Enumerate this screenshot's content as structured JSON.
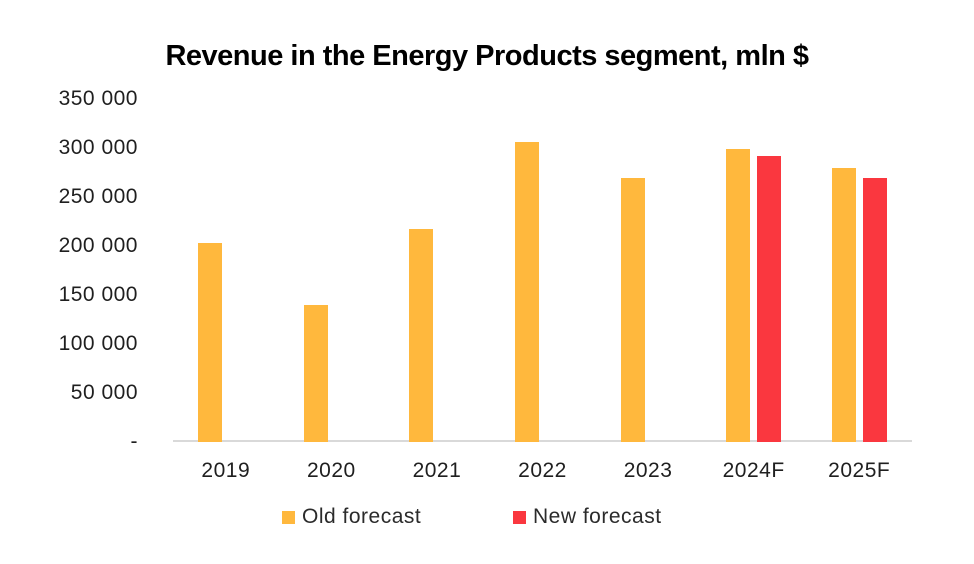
{
  "title": "Revenue in the Energy Products segment, mln $",
  "colors": {
    "old_forecast": "#FFB83D",
    "new_forecast": "#FA373F",
    "axis_line": "#D9D9D9",
    "title_text": "#000000",
    "label_text": "#1F1F1F"
  },
  "legend": {
    "items": [
      {
        "label": "Old forecast",
        "color": "#FFB83D"
      },
      {
        "label": "New forecast",
        "color": "#FA373F"
      }
    ]
  },
  "chart_data": {
    "type": "bar",
    "title": "Revenue in the Energy Products segment, mln $",
    "categories": [
      "2019",
      "2020",
      "2021",
      "2022",
      "2023",
      "2024F",
      "2025F"
    ],
    "series": [
      {
        "name": "Old forecast",
        "color": "#FFB83D",
        "values": [
          203000,
          140000,
          217000,
          306000,
          269000,
          299000,
          280000
        ]
      },
      {
        "name": "New forecast",
        "color": "#FA373F",
        "values": [
          null,
          null,
          null,
          null,
          null,
          292000,
          269000
        ]
      }
    ],
    "xlabel": "",
    "ylabel": "",
    "ylim": [
      0,
      350000
    ],
    "ytick_step": 50000,
    "yticks": [
      {
        "value": 350000,
        "label": "350 000"
      },
      {
        "value": 300000,
        "label": "300 000"
      },
      {
        "value": 250000,
        "label": "250 000"
      },
      {
        "value": 200000,
        "label": "200 000"
      },
      {
        "value": 150000,
        "label": "150 000"
      },
      {
        "value": 100000,
        "label": "100 000"
      },
      {
        "value": 50000,
        "label": "50 000"
      },
      {
        "value": 0,
        "label": "-"
      }
    ],
    "grid": false,
    "legend_position": "bottom"
  }
}
